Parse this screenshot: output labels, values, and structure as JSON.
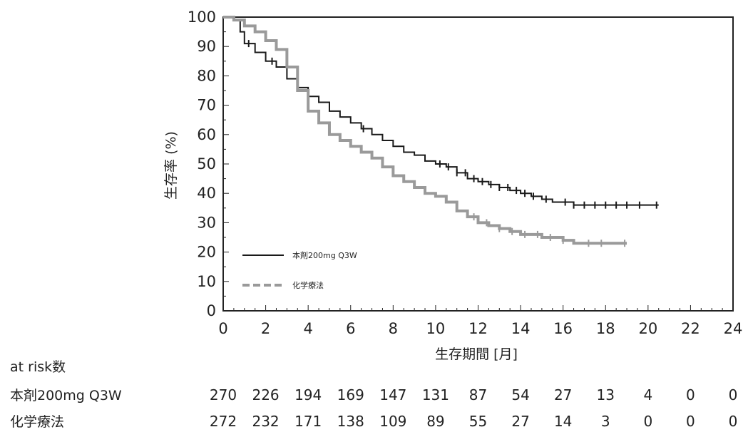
{
  "chart_data": {
    "type": "line",
    "ylabel": "生存率 (%)",
    "xlabel": "生存期間 [月]",
    "xlim": [
      0,
      24
    ],
    "ylim": [
      0,
      100
    ],
    "x_ticks": [
      0,
      2,
      4,
      6,
      8,
      10,
      12,
      14,
      16,
      18,
      20,
      22,
      24
    ],
    "y_ticks": [
      0,
      10,
      20,
      30,
      40,
      50,
      60,
      70,
      80,
      90,
      100
    ],
    "grid": false,
    "legend_position": "bottom-left",
    "series": [
      {
        "name": "本剤200mg Q3W",
        "color": "#1a1a1a",
        "line_style": "solid",
        "points": [
          [
            0,
            100
          ],
          [
            0.5,
            99
          ],
          [
            0.8,
            95
          ],
          [
            1,
            91
          ],
          [
            1.5,
            88
          ],
          [
            2,
            85
          ],
          [
            2.5,
            83
          ],
          [
            3,
            79
          ],
          [
            3.5,
            76
          ],
          [
            4,
            73
          ],
          [
            4.5,
            71
          ],
          [
            5,
            68
          ],
          [
            5.5,
            66
          ],
          [
            6,
            64
          ],
          [
            6.5,
            62
          ],
          [
            7,
            60
          ],
          [
            7.5,
            58
          ],
          [
            8,
            56
          ],
          [
            8.5,
            54
          ],
          [
            9,
            53
          ],
          [
            9.5,
            51
          ],
          [
            10,
            50
          ],
          [
            10.5,
            49
          ],
          [
            11,
            47
          ],
          [
            11.5,
            45
          ],
          [
            12,
            44
          ],
          [
            12.5,
            43
          ],
          [
            13,
            42
          ],
          [
            13.5,
            41
          ],
          [
            14,
            40
          ],
          [
            14.5,
            39
          ],
          [
            15,
            38
          ],
          [
            15.5,
            37
          ],
          [
            16,
            37
          ],
          [
            16.5,
            36
          ],
          [
            17,
            36
          ],
          [
            18,
            36
          ],
          [
            19,
            36
          ],
          [
            20,
            36
          ],
          [
            20.5,
            36
          ]
        ],
        "censor_x": [
          1.2,
          2.3,
          6.6,
          10.2,
          10.6,
          11,
          11.4,
          11.8,
          12.2,
          12.6,
          13,
          13.4,
          13.8,
          14.2,
          14.6,
          15.2,
          16.1,
          16.5,
          17,
          17.5,
          18,
          18.5,
          19,
          19.6,
          20.4
        ]
      },
      {
        "name": "化学療法",
        "color": "#9a9a9a",
        "line_style": "dashed",
        "points": [
          [
            0,
            100
          ],
          [
            0.5,
            99
          ],
          [
            1,
            97
          ],
          [
            1.5,
            95
          ],
          [
            2,
            92
          ],
          [
            2.5,
            89
          ],
          [
            3,
            83
          ],
          [
            3.5,
            75
          ],
          [
            4,
            68
          ],
          [
            4.5,
            64
          ],
          [
            5,
            60
          ],
          [
            5.5,
            58
          ],
          [
            6,
            56
          ],
          [
            6.5,
            54
          ],
          [
            7,
            52
          ],
          [
            7.5,
            49
          ],
          [
            8,
            46
          ],
          [
            8.5,
            44
          ],
          [
            9,
            42
          ],
          [
            9.5,
            40
          ],
          [
            10,
            39
          ],
          [
            10.5,
            37
          ],
          [
            11,
            34
          ],
          [
            11.5,
            32
          ],
          [
            12,
            30
          ],
          [
            12.5,
            29
          ],
          [
            13,
            28
          ],
          [
            13.5,
            27
          ],
          [
            14,
            26
          ],
          [
            14.5,
            26
          ],
          [
            15,
            25
          ],
          [
            15.5,
            25
          ],
          [
            16,
            24
          ],
          [
            16.5,
            23
          ],
          [
            17,
            23
          ],
          [
            18,
            23
          ],
          [
            19,
            23
          ]
        ],
        "censor_x": [
          11.8,
          12.4,
          13,
          13.6,
          14.2,
          14.8,
          15.4,
          16,
          17.2,
          17.8,
          18.9
        ]
      }
    ],
    "at_risk": {
      "title": "at risk数",
      "rows": [
        {
          "label": "本剤200mg Q3W",
          "values": [
            270,
            226,
            194,
            169,
            147,
            131,
            87,
            54,
            27,
            13,
            4,
            0,
            0
          ]
        },
        {
          "label": "化学療法",
          "values": [
            272,
            232,
            171,
            138,
            109,
            89,
            55,
            27,
            14,
            3,
            0,
            0,
            0
          ]
        }
      ]
    }
  }
}
